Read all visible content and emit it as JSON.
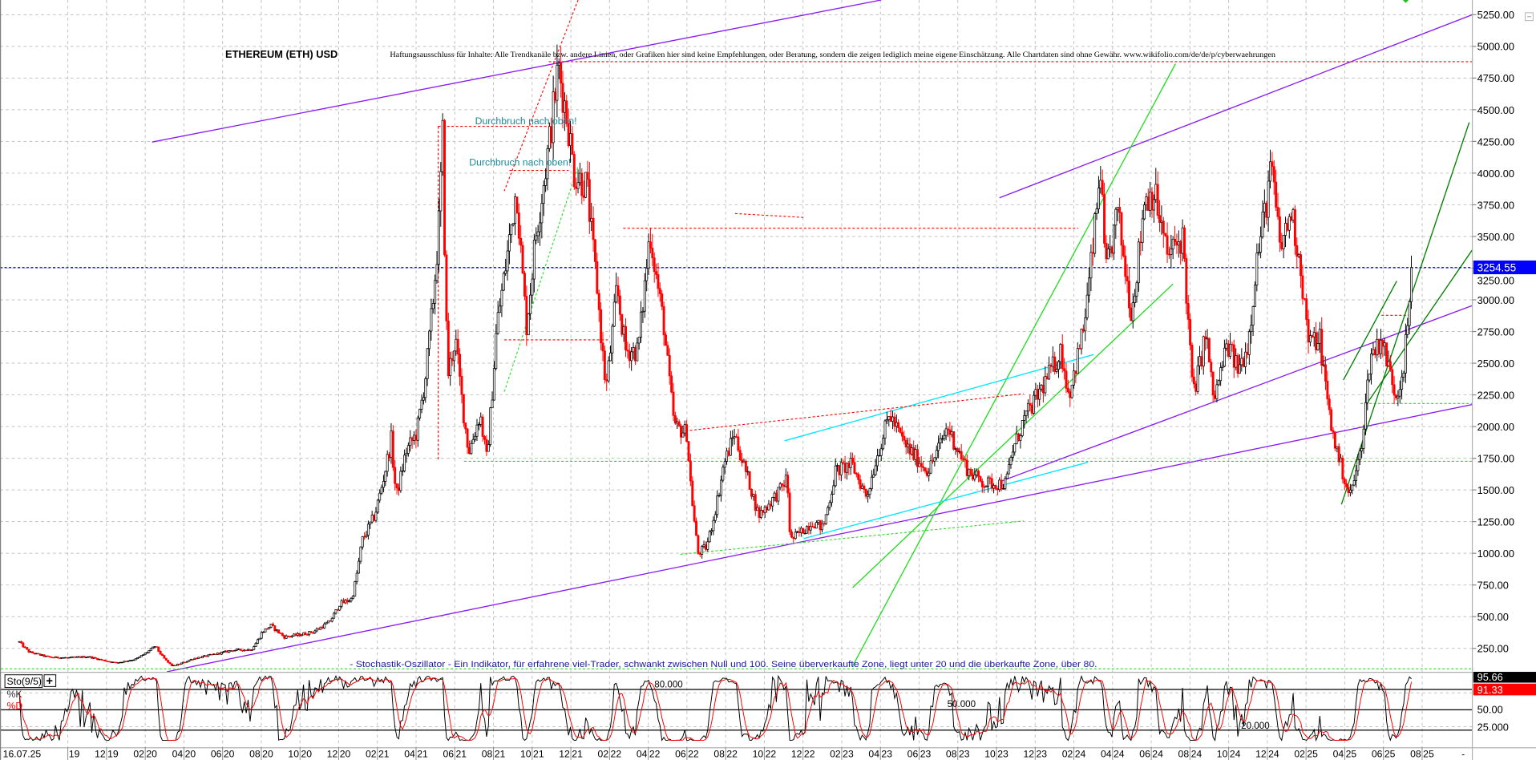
{
  "header": {
    "title": "ETHEREUM (ETH) USD",
    "disclaimer": "Haftungsausschluss für Inhalte: Alle Trendkanäle bzw. andere Linien, oder Grafiken hier sind keine Empfehlungen, oder Beratung, sondern die zeigen lediglich meine eigene Einschätzung. Alle Chartdaten sind ohne Gewähr.  www.wikifolio.com/de/de/p/cyberwaehrungen"
  },
  "annotations": {
    "breakout_1": "Durchbruch nach oben!",
    "breakout_2": "Durchbruch nach oben!",
    "stochastic_note": "- Stochastik-Oszillator - Ein Indikator, für erfahrene viel-Trader, schwankt zwischen Null und 100. Seine überverkaufte Zone, liegt unter 20 und die überkaufte Zone, über 80."
  },
  "colors": {
    "up_candle": "#000000",
    "down_candle": "#ff0000",
    "trend_purple": "#8a1cf0",
    "trend_green": "#22dd22",
    "trend_dark_green": "#008000",
    "trend_cyan": "#00e5ff",
    "trend_red": "#ff0000",
    "last_price_line": "#0000ff",
    "grid": "#c0c0c0"
  },
  "chart_data": [
    {
      "type": "line",
      "title": "ETHEREUM (ETH) USD",
      "ylim": [
        0,
        5300
      ],
      "y_ticks": [
        "250.00",
        "500.00",
        "750.00",
        "1000.00",
        "1250.00",
        "1500.00",
        "1750.00",
        "2000.00",
        "2250.00",
        "2500.00",
        "2750.00",
        "3000.00",
        "3250.00",
        "3500.00",
        "3750.00",
        "4000.00",
        "4250.00",
        "4500.00",
        "4750.00",
        "5000.00",
        "5250.00"
      ],
      "x_ticks": [
        "16.07.25",
        "19",
        "12 19",
        "02 20",
        "04 20",
        "06 20",
        "08 20",
        "10 20",
        "12 20",
        "02 21",
        "04 21",
        "06 21",
        "08 21",
        "10 21",
        "12 21",
        "02 22",
        "04 22",
        "06 22",
        "08 22",
        "10 22",
        "12 22",
        "02 23",
        "04 23",
        "06 23",
        "08 23",
        "10 23",
        "12 23",
        "02 24",
        "04 24",
        "06 24",
        "08 24",
        "10 24",
        "12 24",
        "02 25",
        "04 25",
        "06 25",
        "08 25",
        "-"
      ],
      "grid": true,
      "last_price": 3254.55,
      "last_price_label": "3254.55",
      "series": [
        {
          "points": [
            [
              "2019-07-16",
              300
            ],
            [
              "2019-08-01",
              220
            ],
            [
              "2019-09-01",
              180
            ],
            [
              "2019-10-01",
              175
            ],
            [
              "2019-11-01",
              185
            ],
            [
              "2019-12-15",
              135
            ],
            [
              "2020-01-15",
              165
            ],
            [
              "2020-02-15",
              270
            ],
            [
              "2020-03-13",
              110
            ],
            [
              "2020-04-15",
              170
            ],
            [
              "2020-05-15",
              200
            ],
            [
              "2020-06-15",
              235
            ],
            [
              "2020-07-15",
              240
            ],
            [
              "2020-08-01",
              380
            ],
            [
              "2020-08-15",
              430
            ],
            [
              "2020-09-05",
              340
            ],
            [
              "2020-10-01",
              360
            ],
            [
              "2020-10-20",
              380
            ],
            [
              "2020-11-15",
              460
            ],
            [
              "2020-12-01",
              600
            ],
            [
              "2020-12-20",
              640
            ],
            [
              "2021-01-05",
              1100
            ],
            [
              "2021-01-25",
              1300
            ],
            [
              "2021-02-20",
              1900
            ],
            [
              "2021-02-28",
              1450
            ],
            [
              "2021-03-15",
              1800
            ],
            [
              "2021-04-01",
              1950
            ],
            [
              "2021-04-15",
              2400
            ],
            [
              "2021-05-05",
              3500
            ],
            [
              "2021-05-12",
              4300
            ],
            [
              "2021-05-20",
              2400
            ],
            [
              "2021-06-01",
              2700
            ],
            [
              "2021-06-22",
              1800
            ],
            [
              "2021-07-10",
              2100
            ],
            [
              "2021-07-20",
              1750
            ],
            [
              "2021-08-05",
              2800
            ],
            [
              "2021-08-20",
              3300
            ],
            [
              "2021-09-05",
              3900
            ],
            [
              "2021-09-21",
              2800
            ],
            [
              "2021-10-05",
              3500
            ],
            [
              "2021-10-28",
              4300
            ],
            [
              "2021-11-10",
              4850
            ],
            [
              "2021-11-25",
              4400
            ],
            [
              "2021-12-05",
              4000
            ],
            [
              "2021-12-25",
              3900
            ],
            [
              "2022-01-10",
              3100
            ],
            [
              "2022-01-24",
              2300
            ],
            [
              "2022-02-10",
              3100
            ],
            [
              "2022-02-24",
              2600
            ],
            [
              "2022-03-15",
              2600
            ],
            [
              "2022-04-03",
              3550
            ],
            [
              "2022-04-25",
              2800
            ],
            [
              "2022-05-12",
              2000
            ],
            [
              "2022-05-31",
              1950
            ],
            [
              "2022-06-18",
              1000
            ],
            [
              "2022-07-01",
              1050
            ],
            [
              "2022-07-28",
              1700
            ],
            [
              "2022-08-14",
              1950
            ],
            [
              "2022-09-07",
              1550
            ],
            [
              "2022-09-21",
              1300
            ],
            [
              "2022-10-25",
              1500
            ],
            [
              "2022-11-05",
              1600
            ],
            [
              "2022-11-10",
              1100
            ],
            [
              "2022-12-15",
              1250
            ],
            [
              "2022-12-31",
              1200
            ],
            [
              "2023-01-20",
              1650
            ],
            [
              "2023-02-15",
              1700
            ],
            [
              "2023-03-10",
              1450
            ],
            [
              "2023-03-25",
              1750
            ],
            [
              "2023-04-15",
              2100
            ],
            [
              "2023-05-10",
              1850
            ],
            [
              "2023-06-15",
              1650
            ],
            [
              "2023-07-15",
              2000
            ],
            [
              "2023-08-17",
              1650
            ],
            [
              "2023-09-12",
              1550
            ],
            [
              "2023-10-15",
              1550
            ],
            [
              "2023-10-25",
              1800
            ],
            [
              "2023-11-12",
              2050
            ],
            [
              "2023-12-10",
              2300
            ],
            [
              "2024-01-10",
              2600
            ],
            [
              "2024-01-22",
              2250
            ],
            [
              "2024-02-15",
              2800
            ],
            [
              "2024-03-12",
              4050
            ],
            [
              "2024-03-20",
              3200
            ],
            [
              "2024-04-08",
              3700
            ],
            [
              "2024-04-30",
              2900
            ],
            [
              "2024-05-20",
              3800
            ],
            [
              "2024-06-05",
              3850
            ],
            [
              "2024-06-25",
              3350
            ],
            [
              "2024-07-20",
              3500
            ],
            [
              "2024-08-05",
              2250
            ],
            [
              "2024-08-25",
              2750
            ],
            [
              "2024-09-06",
              2200
            ],
            [
              "2024-09-27",
              2650
            ],
            [
              "2024-10-15",
              2450
            ],
            [
              "2024-10-30",
              2650
            ],
            [
              "2024-11-12",
              3300
            ],
            [
              "2024-12-06",
              4050
            ],
            [
              "2024-12-20",
              3400
            ],
            [
              "2025-01-06",
              3700
            ],
            [
              "2025-01-20",
              3300
            ],
            [
              "2025-02-03",
              2650
            ],
            [
              "2025-02-20",
              2700
            ],
            [
              "2025-03-10",
              2000
            ],
            [
              "2025-04-08",
              1450
            ],
            [
              "2025-04-25",
              1800
            ],
            [
              "2025-05-10",
              2550
            ],
            [
              "2025-05-28",
              2700
            ],
            [
              "2025-06-20",
              2250
            ],
            [
              "2025-07-01",
              2450
            ],
            [
              "2025-07-16",
              3254.55
            ]
          ]
        }
      ],
      "trendlines": [
        {
          "color": "purple",
          "style": "solid",
          "from": [
            "2020-02-10",
            4245
          ],
          "to": [
            "2023-04-02",
            5366
          ]
        },
        {
          "color": "purple",
          "style": "solid",
          "from": [
            "2020-03-04",
            65
          ],
          "to": [
            "2025-10-18",
            2174
          ]
        },
        {
          "color": "purple",
          "style": "solid",
          "from": [
            "2023-10-05",
            1564
          ],
          "to": [
            "2025-10-18",
            2955
          ]
        },
        {
          "color": "purple",
          "style": "solid",
          "from": [
            "2023-10-05",
            3805
          ],
          "to": [
            "2025-10-18",
            5250
          ]
        },
        {
          "color": "green",
          "style": "solid",
          "from": [
            "2023-02-16",
            111
          ],
          "to": [
            "2024-07-08",
            4863
          ]
        },
        {
          "color": "green",
          "style": "solid",
          "from": [
            "2023-02-16",
            729
          ],
          "to": [
            "2024-07-04",
            3125
          ]
        },
        {
          "color": "green",
          "style": "dotted",
          "from": [
            "2021-08-17",
            2275
          ],
          "to": [
            "2021-12-11",
            4052
          ]
        },
        {
          "color": "green",
          "style": "dotted",
          "from": [
            "2022-05-21",
            992
          ],
          "to": [
            "2023-11-12",
            1255
          ]
        },
        {
          "color": "green",
          "style": "dotted",
          "from": [
            "2021-06-15",
            1726
          ],
          "to": [
            "2025-10-18",
            1726
          ]
        },
        {
          "color": "green",
          "style": "dotted",
          "from": [
            "2019-06-17",
            88
          ],
          "to": [
            "2025-10-18",
            88
          ]
        },
        {
          "color": "green",
          "style": "dotted",
          "from": [
            "2025-04-25",
            2182
          ],
          "to": [
            "2025-10-18",
            2182
          ]
        },
        {
          "color": "dark_green",
          "style": "solid",
          "from": [
            "2025-03-26",
            1386
          ],
          "to": [
            "2025-10-13",
            4400
          ]
        },
        {
          "color": "dark_green",
          "style": "solid",
          "from": [
            "2025-03-29",
            2367
          ],
          "to": [
            "2025-06-21",
            3148
          ]
        },
        {
          "color": "dark_green",
          "style": "solid",
          "from": [
            "2025-05-04",
            2174
          ],
          "to": [
            "2025-10-18",
            3395
          ]
        },
        {
          "color": "cyan",
          "style": "solid",
          "from": [
            "2022-11-01",
            1888
          ],
          "to": [
            "2024-03-01",
            2568
          ]
        },
        {
          "color": "cyan",
          "style": "solid",
          "from": [
            "2022-12-01",
            1116
          ],
          "to": [
            "2024-02-21",
            1718
          ]
        },
        {
          "color": "red",
          "style": "dotted",
          "from": [
            "2021-10-26",
            4879
          ],
          "to": [
            "2025-10-18",
            4879
          ]
        },
        {
          "color": "red",
          "style": "dotted",
          "from": [
            "2021-05-05",
            4369
          ],
          "to": [
            "2021-10-26",
            4369
          ]
        },
        {
          "color": "red",
          "style": "dotted",
          "from": [
            "2021-05-05",
            4369
          ],
          "to": [
            "2021-05-05",
            1734
          ]
        },
        {
          "color": "red",
          "style": "dotted",
          "from": [
            "2021-08-25",
            4021
          ],
          "to": [
            "2021-11-26",
            4021
          ]
        },
        {
          "color": "red",
          "style": "dotted",
          "from": [
            "2021-12-11",
            5366
          ],
          "to": [
            "2021-08-17",
            3859
          ]
        },
        {
          "color": "red",
          "style": "dotted",
          "from": [
            "2022-05-29",
            1966
          ],
          "to": [
            "2023-11-12",
            2259
          ]
        },
        {
          "color": "red",
          "style": "dotted",
          "from": [
            "2022-02-20",
            3565
          ],
          "to": [
            "2024-02-06",
            3565
          ]
        },
        {
          "color": "red",
          "style": "dotted",
          "from": [
            "2022-08-15",
            3681
          ],
          "to": [
            "2022-12-01",
            3650
          ]
        },
        {
          "color": "red",
          "style": "dotted",
          "from": [
            "2021-08-17",
            2684
          ],
          "to": [
            "2022-01-27",
            2684
          ]
        },
        {
          "color": "red",
          "style": "dotted",
          "from": [
            "2025-05-28",
            2878
          ],
          "to": [
            "2025-07-12",
            2878
          ]
        }
      ]
    },
    {
      "type": "line",
      "title": "Sto(9/5)",
      "ylim": [
        0,
        100
      ],
      "levels": [
        20,
        50,
        80
      ],
      "level_labels": [
        "20.000",
        "50.000",
        "80.000"
      ],
      "series": [
        {
          "name": "%K",
          "last_value": 95.66,
          "last_label": "95.66"
        },
        {
          "name": "%D",
          "last_value": 91.33,
          "last_label": "91.33"
        }
      ],
      "y_ticks": [
        "50.00",
        "25.000"
      ]
    }
  ]
}
